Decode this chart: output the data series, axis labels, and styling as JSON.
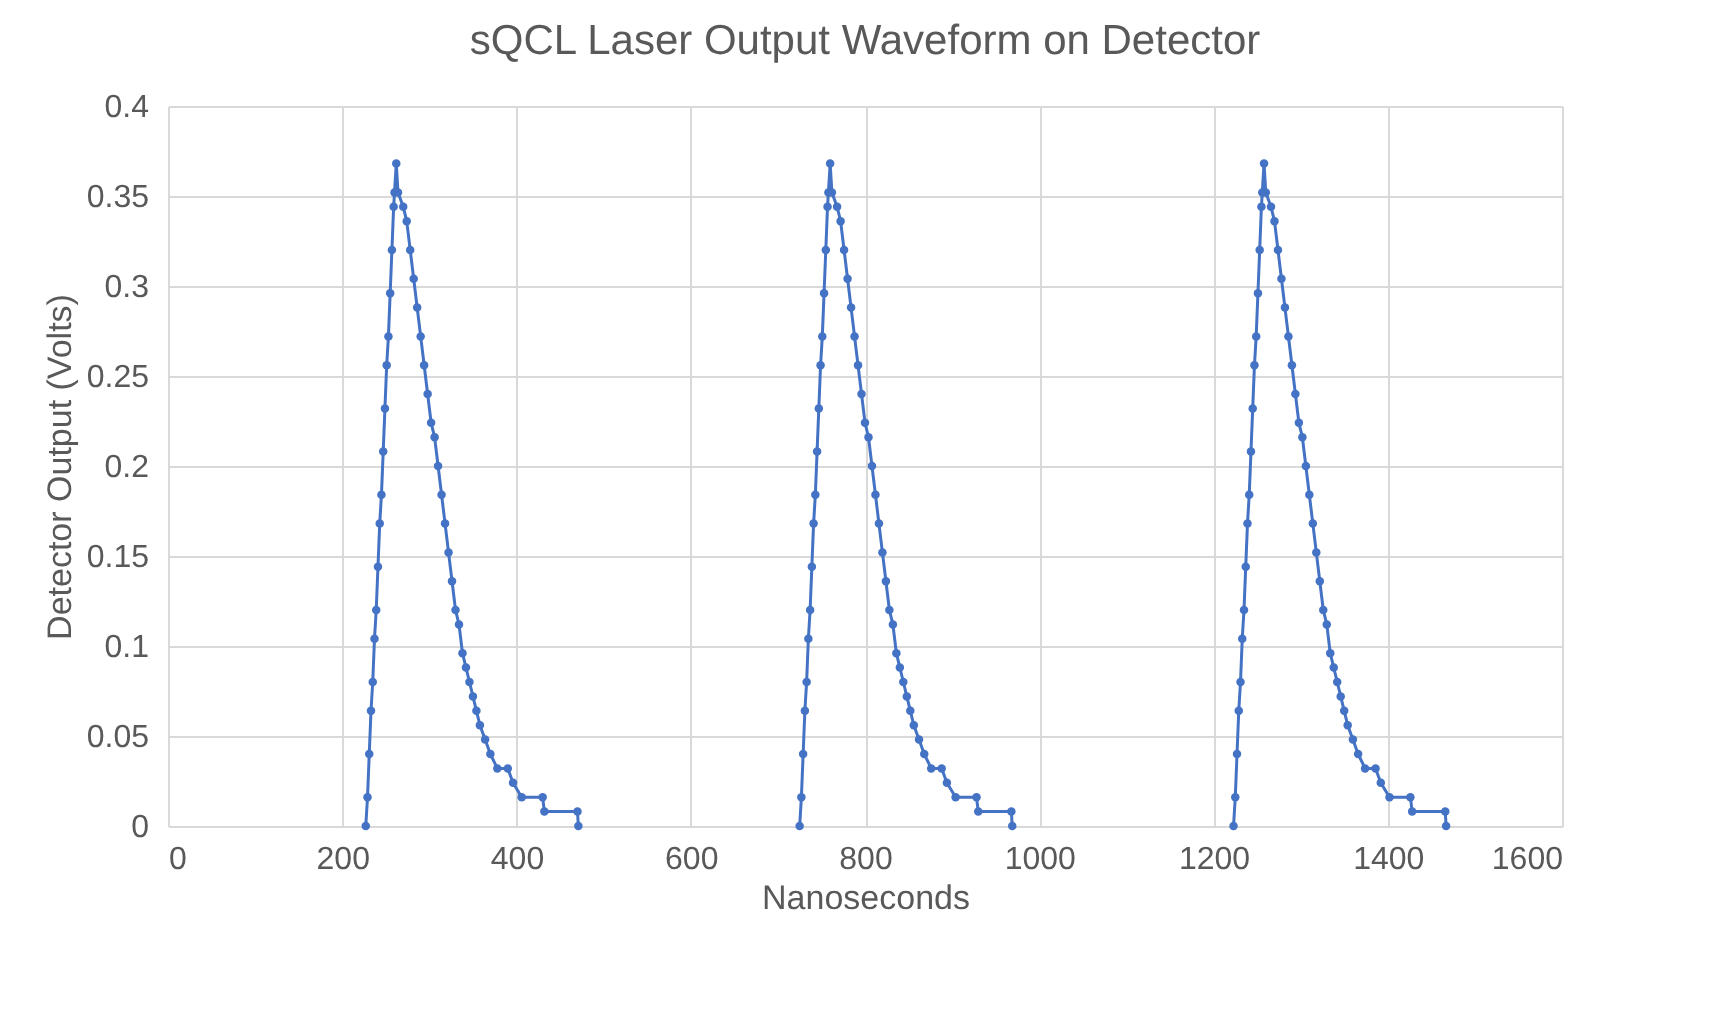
{
  "chart_data": {
    "type": "line",
    "title": "sQCL Laser Output Waveform on Detector",
    "xlabel": "Nanoseconds",
    "ylabel": "Detector Output (Volts)",
    "xlim": [
      0,
      1600
    ],
    "xticks": [
      0,
      200,
      400,
      600,
      800,
      1000,
      1200,
      1400,
      1600
    ],
    "ylim": [
      0,
      0.4
    ],
    "yticks": [
      0,
      0.05,
      0.1,
      0.15,
      0.2,
      0.25,
      0.3,
      0.35,
      0.4
    ],
    "grid": true,
    "legend": false,
    "marker": "circle",
    "line_style": "solid",
    "series": [
      {
        "color": "#4472c4",
        "x": [
          227,
          229,
          231,
          233,
          235,
          237,
          239,
          241,
          243,
          245,
          247,
          249,
          251,
          253,
          255,
          257,
          259,
          260,
          262,
          264,
          270,
          274,
          278,
          282,
          286,
          290,
          294,
          298,
          302,
          306,
          310,
          314,
          318,
          322,
          326,
          330,
          334,
          338,
          342,
          346,
          350,
          354,
          358,
          364,
          370,
          378,
          390,
          396,
          406,
          430,
          432,
          470,
          471
        ],
        "values": [
          0,
          0.016,
          0.04,
          0.064,
          0.08,
          0.104,
          0.12,
          0.144,
          0.168,
          0.184,
          0.208,
          0.232,
          0.256,
          0.272,
          0.296,
          0.32,
          0.344,
          0.352,
          0.368,
          0.352,
          0.344,
          0.336,
          0.32,
          0.304,
          0.288,
          0.272,
          0.256,
          0.24,
          0.224,
          0.216,
          0.2,
          0.184,
          0.168,
          0.152,
          0.136,
          0.12,
          0.112,
          0.096,
          0.088,
          0.08,
          0.072,
          0.064,
          0.056,
          0.048,
          0.04,
          0.032,
          0.032,
          0.024,
          0.016,
          0.016,
          0.008,
          0.008,
          0
        ]
      },
      {
        "color": "#4472c4",
        "x": [
          725,
          727,
          729,
          731,
          733,
          735,
          737,
          739,
          741,
          743,
          745,
          747,
          749,
          751,
          753,
          755,
          757,
          758,
          760,
          762,
          768,
          772,
          776,
          780,
          784,
          788,
          792,
          796,
          800,
          804,
          808,
          812,
          816,
          820,
          824,
          828,
          832,
          836,
          840,
          844,
          848,
          852,
          856,
          862,
          868,
          876,
          888,
          894,
          904,
          928,
          930,
          968,
          969
        ],
        "values": [
          0,
          0.016,
          0.04,
          0.064,
          0.08,
          0.104,
          0.12,
          0.144,
          0.168,
          0.184,
          0.208,
          0.232,
          0.256,
          0.272,
          0.296,
          0.32,
          0.344,
          0.352,
          0.368,
          0.352,
          0.344,
          0.336,
          0.32,
          0.304,
          0.288,
          0.272,
          0.256,
          0.24,
          0.224,
          0.216,
          0.2,
          0.184,
          0.168,
          0.152,
          0.136,
          0.12,
          0.112,
          0.096,
          0.088,
          0.08,
          0.072,
          0.064,
          0.056,
          0.048,
          0.04,
          0.032,
          0.032,
          0.024,
          0.016,
          0.016,
          0.008,
          0.008,
          0
        ]
      },
      {
        "color": "#4472c4",
        "x": [
          1223,
          1225,
          1227,
          1229,
          1231,
          1233,
          1235,
          1237,
          1239,
          1241,
          1243,
          1245,
          1247,
          1249,
          1251,
          1253,
          1255,
          1256,
          1258,
          1260,
          1266,
          1270,
          1274,
          1278,
          1282,
          1286,
          1290,
          1294,
          1298,
          1302,
          1306,
          1310,
          1314,
          1318,
          1322,
          1326,
          1330,
          1334,
          1338,
          1342,
          1346,
          1350,
          1354,
          1360,
          1366,
          1374,
          1386,
          1392,
          1402,
          1426,
          1428,
          1466,
          1467
        ],
        "values": [
          0,
          0.016,
          0.04,
          0.064,
          0.08,
          0.104,
          0.12,
          0.144,
          0.168,
          0.184,
          0.208,
          0.232,
          0.256,
          0.272,
          0.296,
          0.32,
          0.344,
          0.352,
          0.368,
          0.352,
          0.344,
          0.336,
          0.32,
          0.304,
          0.288,
          0.272,
          0.256,
          0.24,
          0.224,
          0.216,
          0.2,
          0.184,
          0.168,
          0.152,
          0.136,
          0.12,
          0.112,
          0.096,
          0.088,
          0.08,
          0.072,
          0.064,
          0.056,
          0.048,
          0.04,
          0.032,
          0.032,
          0.024,
          0.016,
          0.016,
          0.008,
          0.008,
          0
        ]
      }
    ]
  }
}
